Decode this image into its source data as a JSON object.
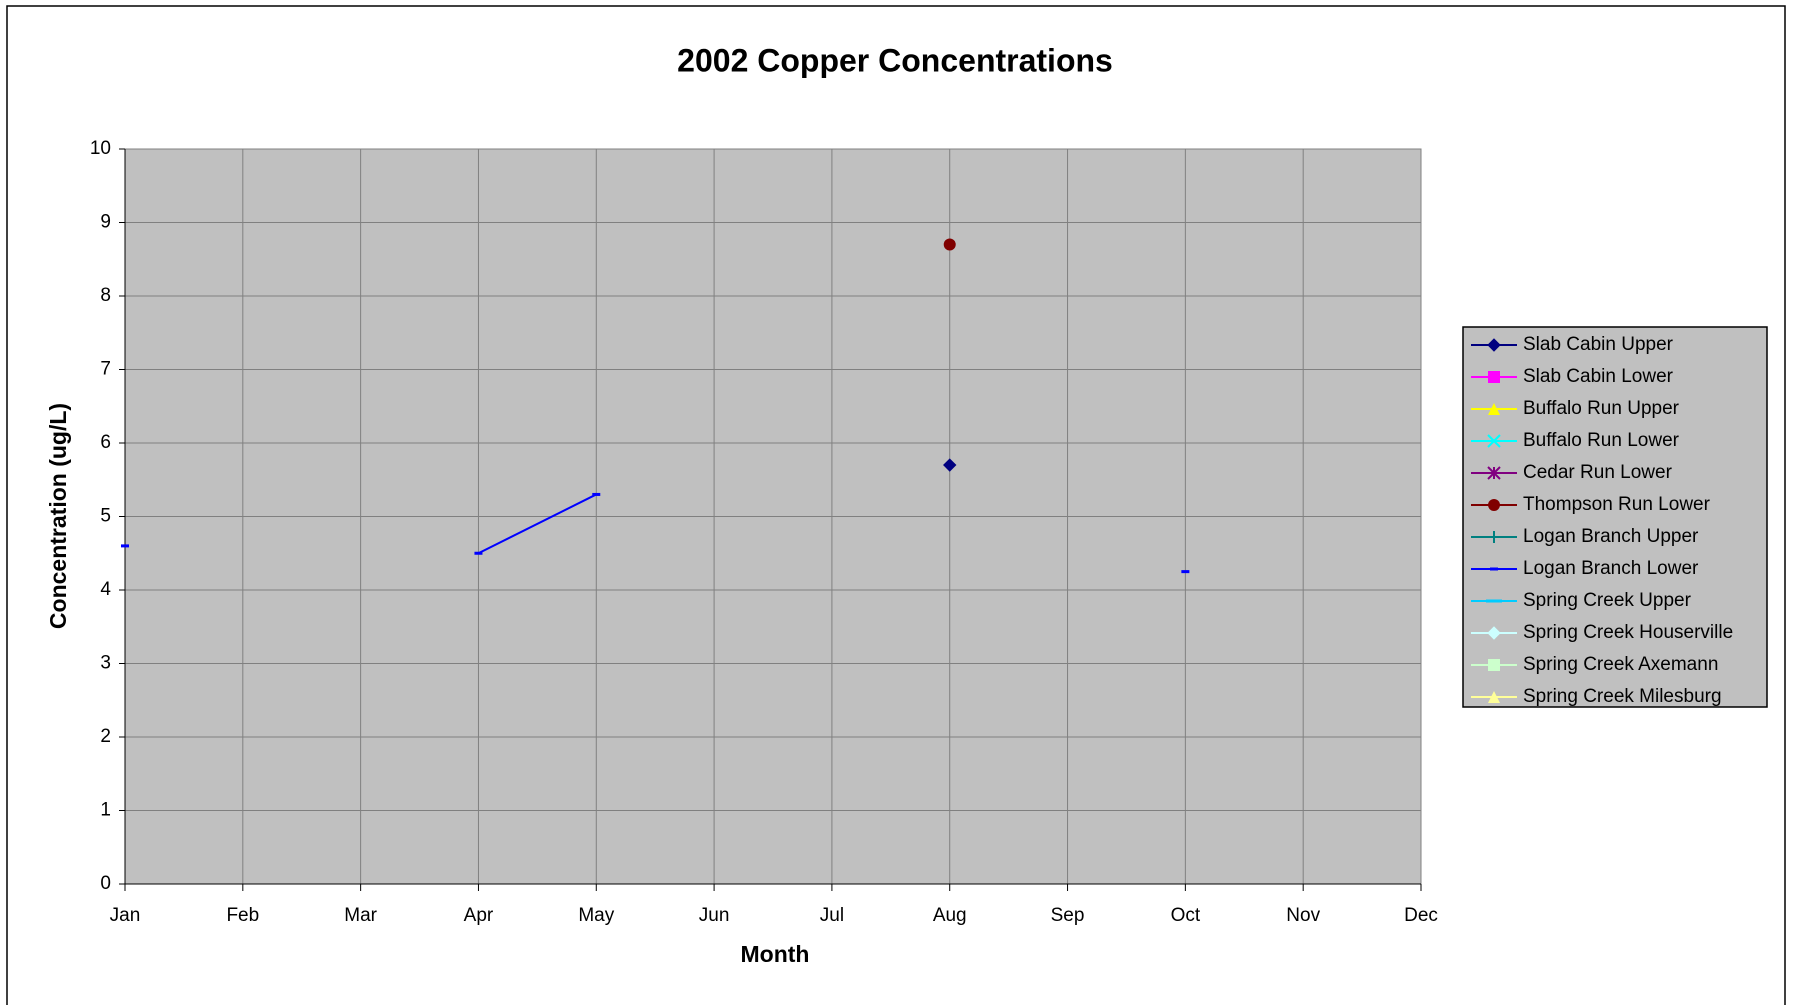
{
  "chart_data": {
    "type": "line",
    "title": "2002 Copper Concentrations",
    "x_label": "Month",
    "y_label": "Concentration (ug/L)",
    "categories": [
      "Jan",
      "Feb",
      "Mar",
      "Apr",
      "May",
      "Jun",
      "Jul",
      "Aug",
      "Sep",
      "Oct",
      "Nov",
      "Dec"
    ],
    "ylim": [
      0,
      10
    ],
    "yticks": [
      0,
      1,
      2,
      3,
      4,
      5,
      6,
      7,
      8,
      9,
      10
    ],
    "grid": true,
    "legend": "right",
    "series": [
      {
        "name": "Slab Cabin Upper",
        "color": "#000080",
        "marker": "diamond",
        "values": [
          null,
          null,
          null,
          null,
          null,
          null,
          null,
          5.7,
          null,
          null,
          null,
          null
        ]
      },
      {
        "name": "Slab Cabin Lower",
        "color": "#ff00ff",
        "marker": "square",
        "values": [
          null,
          null,
          null,
          null,
          null,
          null,
          null,
          null,
          null,
          null,
          null,
          null
        ]
      },
      {
        "name": "Buffalo Run Upper",
        "color": "#ffff00",
        "marker": "triangle",
        "values": [
          null,
          null,
          null,
          null,
          null,
          null,
          null,
          null,
          null,
          null,
          null,
          null
        ]
      },
      {
        "name": "Buffalo Run Lower",
        "color": "#00ffff",
        "marker": "x",
        "values": [
          null,
          null,
          null,
          null,
          null,
          null,
          null,
          null,
          null,
          null,
          null,
          null
        ]
      },
      {
        "name": "Cedar Run Lower",
        "color": "#800080",
        "marker": "star",
        "values": [
          null,
          null,
          null,
          null,
          null,
          null,
          null,
          null,
          null,
          null,
          null,
          null
        ]
      },
      {
        "name": "Thompson Run Lower",
        "color": "#800000",
        "marker": "circle",
        "values": [
          null,
          null,
          null,
          null,
          null,
          null,
          null,
          8.7,
          null,
          null,
          null,
          null
        ]
      },
      {
        "name": "Logan Branch Upper",
        "color": "#008080",
        "marker": "plus",
        "values": [
          null,
          null,
          null,
          null,
          null,
          null,
          null,
          null,
          null,
          null,
          null,
          null
        ]
      },
      {
        "name": "Logan Branch Lower",
        "color": "#0000ff",
        "marker": "dash",
        "values": [
          4.6,
          null,
          null,
          4.5,
          5.3,
          null,
          null,
          null,
          null,
          4.25,
          null,
          null
        ]
      },
      {
        "name": "Spring Creek Upper",
        "color": "#00ccff",
        "marker": "longdash",
        "values": [
          null,
          null,
          null,
          null,
          null,
          null,
          null,
          null,
          null,
          null,
          null,
          null
        ]
      },
      {
        "name": "Spring Creek Houserville",
        "color": "#ccffff",
        "marker": "diamond",
        "values": [
          null,
          null,
          null,
          null,
          null,
          null,
          null,
          null,
          null,
          null,
          null,
          null
        ]
      },
      {
        "name": "Spring Creek Axemann",
        "color": "#ccffcc",
        "marker": "square",
        "values": [
          null,
          null,
          null,
          null,
          null,
          null,
          null,
          null,
          null,
          null,
          null,
          null
        ]
      },
      {
        "name": "Spring Creek Milesburg",
        "color": "#ffff99",
        "marker": "triangle",
        "values": [
          null,
          null,
          null,
          null,
          null,
          null,
          null,
          null,
          null,
          null,
          null,
          null
        ]
      }
    ]
  }
}
